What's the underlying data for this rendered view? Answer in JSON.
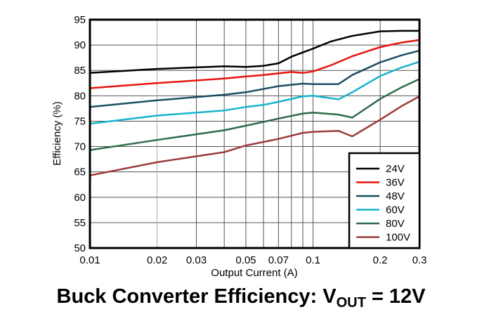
{
  "chart_data": {
    "type": "line",
    "title_parts": {
      "main": "Buck Converter Efficiency: V",
      "sub": "OUT",
      "tail": " = 12V"
    },
    "xlabel": "Output Current (A)",
    "ylabel": "Efficiency (%)",
    "xscale": "log",
    "xlim": [
      0.01,
      0.3
    ],
    "ylim": [
      50,
      95
    ],
    "grid": true,
    "legend": "bottom-right",
    "xticks": [
      "0.01",
      "0.02",
      "0.03",
      "0.05",
      "0.07",
      "0.1",
      "0.2",
      "0.3"
    ],
    "xtick_values": [
      0.01,
      0.02,
      0.03,
      0.05,
      0.07,
      0.1,
      0.2,
      0.3
    ],
    "yticks": [
      "50",
      "55",
      "60",
      "65",
      "70",
      "75",
      "80",
      "85",
      "90",
      "95"
    ],
    "series": [
      {
        "name": "24V",
        "color": "#000000",
        "x": [
          0.01,
          0.02,
          0.04,
          0.05,
          0.06,
          0.07,
          0.08,
          0.1,
          0.12,
          0.15,
          0.2,
          0.25,
          0.3
        ],
        "y": [
          84.5,
          85.3,
          85.8,
          85.7,
          85.9,
          86.4,
          87.7,
          89.3,
          90.7,
          91.8,
          92.7,
          92.8,
          92.8
        ]
      },
      {
        "name": "36V",
        "color": "#e8130f",
        "x": [
          0.01,
          0.02,
          0.04,
          0.05,
          0.06,
          0.08,
          0.09,
          0.1,
          0.12,
          0.15,
          0.2,
          0.25,
          0.3
        ],
        "y": [
          81.5,
          82.5,
          83.4,
          83.8,
          84.1,
          84.7,
          84.5,
          84.8,
          86.0,
          87.8,
          89.6,
          90.5,
          91.0
        ]
      },
      {
        "name": "48V",
        "color": "#1c4e63",
        "x": [
          0.01,
          0.02,
          0.04,
          0.05,
          0.07,
          0.09,
          0.1,
          0.13,
          0.15,
          0.2,
          0.25,
          0.3
        ],
        "y": [
          77.8,
          79.1,
          80.2,
          80.7,
          81.9,
          82.4,
          82.3,
          82.3,
          84.1,
          86.6,
          88.0,
          88.9
        ]
      },
      {
        "name": "60V",
        "color": "#17b4cc",
        "x": [
          0.01,
          0.02,
          0.04,
          0.05,
          0.06,
          0.07,
          0.09,
          0.1,
          0.13,
          0.15,
          0.2,
          0.25,
          0.3
        ],
        "y": [
          74.5,
          76.1,
          77.1,
          77.8,
          78.2,
          78.8,
          79.9,
          80.0,
          79.3,
          80.7,
          83.9,
          85.6,
          86.7
        ]
      },
      {
        "name": "80V",
        "color": "#2f6b4c",
        "x": [
          0.01,
          0.02,
          0.04,
          0.05,
          0.07,
          0.09,
          0.1,
          0.13,
          0.15,
          0.2,
          0.25,
          0.3
        ],
        "y": [
          69.3,
          71.3,
          73.2,
          74.1,
          75.5,
          76.5,
          76.7,
          76.3,
          75.7,
          79.4,
          81.7,
          83.3
        ]
      },
      {
        "name": "100V",
        "color": "#9b3b3b",
        "x": [
          0.01,
          0.02,
          0.04,
          0.05,
          0.07,
          0.09,
          0.1,
          0.13,
          0.15,
          0.2,
          0.25,
          0.3
        ],
        "y": [
          64.3,
          66.9,
          68.9,
          70.2,
          71.5,
          72.7,
          72.9,
          73.1,
          72.0,
          75.3,
          78.0,
          79.9
        ]
      }
    ]
  }
}
